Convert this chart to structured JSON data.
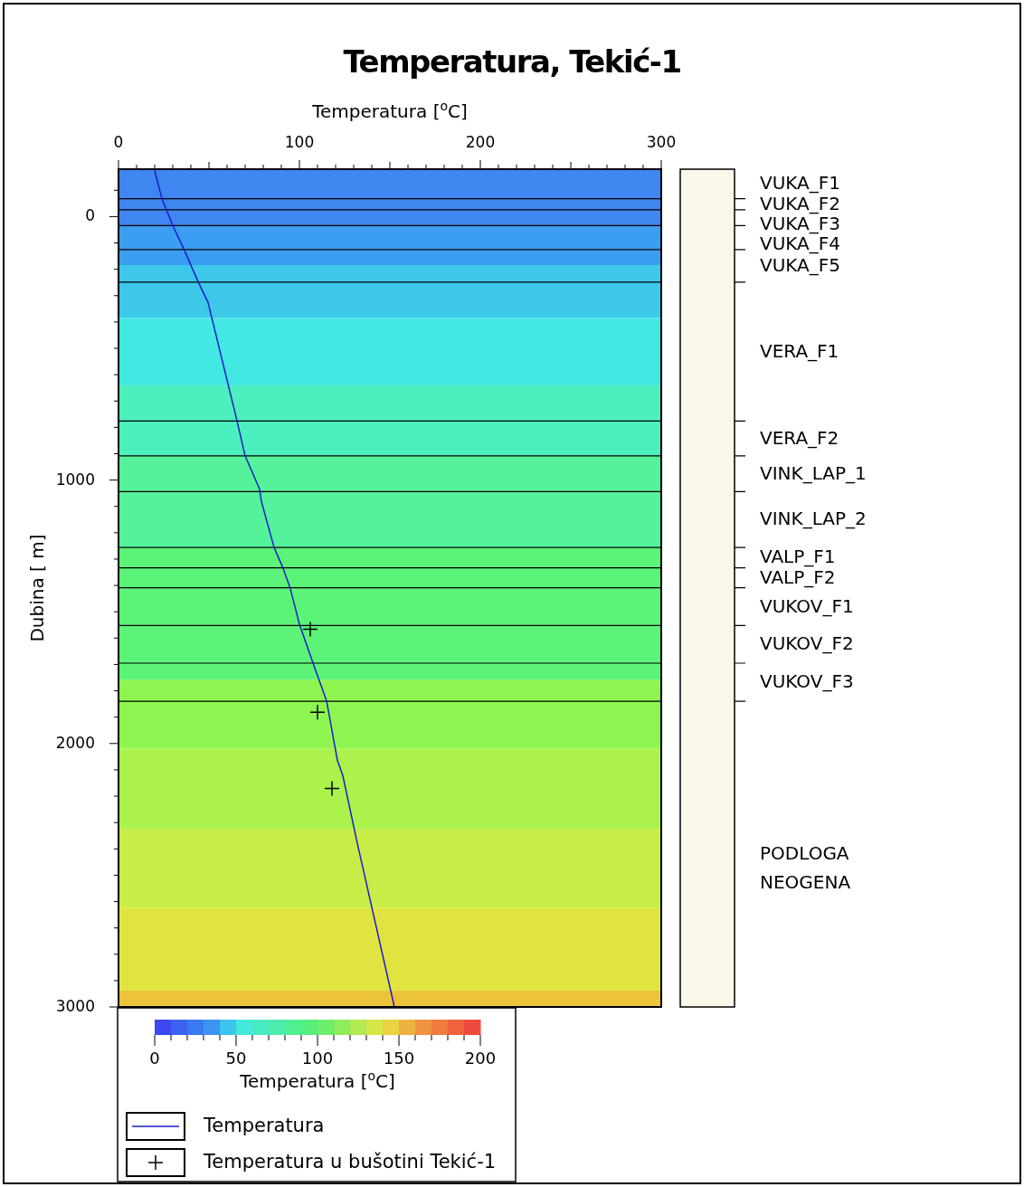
{
  "chart_data": {
    "type": "line",
    "title": "Temperatura, Tekić-1",
    "xlabel": "Temperatura [$^{o}$C]",
    "ylabel": "Dubina [ m]",
    "clabel": "Temperatura [$^{o}$C]",
    "xlim": [
      0,
      300
    ],
    "xticks": [
      0,
      {
        "value": 10,
        "label": null
      },
      {
        "value": 20,
        "label": null
      },
      {
        "value": 30,
        "label": null
      },
      {
        "value": 40,
        "label": null
      },
      {
        "value": 50,
        "label": null
      },
      {
        "value": 60,
        "label": null
      },
      {
        "value": 70,
        "label": null
      },
      {
        "value": 80,
        "label": null
      },
      {
        "value": 90,
        "label": null
      },
      100,
      {
        "value": 110,
        "label": null
      },
      {
        "value": 120,
        "label": null
      },
      {
        "value": 130,
        "label": null
      },
      {
        "value": 140,
        "label": null
      },
      {
        "value": 150,
        "label": null
      },
      {
        "value": 160,
        "label": null
      },
      {
        "value": 170,
        "label": null
      },
      {
        "value": 180,
        "label": null
      },
      {
        "value": 190,
        "label": null
      },
      200,
      {
        "value": 210,
        "label": null
      },
      {
        "value": 220,
        "label": null
      },
      {
        "value": 230,
        "label": null
      },
      {
        "value": 240,
        "label": null
      },
      {
        "value": 250,
        "label": null
      },
      {
        "value": 260,
        "label": null
      },
      {
        "value": 270,
        "label": null
      },
      {
        "value": 280,
        "label": null
      },
      {
        "value": 290,
        "label": null
      },
      300
    ],
    "ylim": [
      3000,
      -180
    ],
    "yticks": [
      {
        "value": -100,
        "label": null
      },
      0,
      {
        "value": 100,
        "label": null
      },
      {
        "value": 200,
        "label": null
      },
      {
        "value": 300,
        "label": null
      },
      {
        "value": 400,
        "label": null
      },
      {
        "value": 500,
        "label": null
      },
      {
        "value": 600,
        "label": null
      },
      {
        "value": 700,
        "label": null
      },
      {
        "value": 800,
        "label": null
      },
      {
        "value": 900,
        "label": null
      },
      1000,
      {
        "value": 1100,
        "label": null
      },
      {
        "value": 1200,
        "label": null
      },
      {
        "value": 1300,
        "label": null
      },
      {
        "value": 1400,
        "label": null
      },
      {
        "value": 1500,
        "label": null
      },
      {
        "value": 1600,
        "label": null
      },
      {
        "value": 1700,
        "label": null
      },
      {
        "value": 1800,
        "label": null
      },
      {
        "value": 1900,
        "label": null
      },
      2000,
      {
        "value": 2100,
        "label": null
      },
      {
        "value": 2200,
        "label": null
      },
      {
        "value": 2300,
        "label": null
      },
      {
        "value": 2400,
        "label": null
      },
      {
        "value": 2500,
        "label": null
      },
      {
        "value": 2600,
        "label": null
      },
      {
        "value": 2700,
        "label": null
      },
      {
        "value": 2800,
        "label": null
      },
      {
        "value": 2900,
        "label": null
      },
      3000
    ],
    "series": [
      {
        "name": "Temperatura",
        "color": "#1c1cc8",
        "x": [
          20,
          24,
          30,
          36,
          44,
          49.5,
          65.5,
          70,
          78,
          79,
          86,
          91,
          95,
          100,
          107.5,
          115,
          121,
          124,
          132,
          152.5
        ],
        "values": [
          -175,
          -68,
          34,
          121,
          247,
          326,
          775,
          908,
          1035,
          1082,
          1256,
          1335,
          1413,
          1547,
          1694,
          1838,
          2064,
          2122,
          2379,
          3000
        ]
      },
      {
        "name": "Temperatura u bušotini Tekić-1",
        "type": "scatter",
        "color": "#000000",
        "marker": "cross",
        "x": [
          106,
          110,
          118
        ],
        "values": [
          1566,
          1881,
          2171
        ]
      }
    ],
    "bands": [
      {
        "axis": "y",
        "from": -180,
        "to": 34,
        "color": "#3f86f0"
      },
      {
        "axis": "y",
        "from": 34,
        "to": 184,
        "color": "#3c9ef0"
      },
      {
        "axis": "y",
        "from": 184,
        "to": 385,
        "color": "#3dc8ea"
      },
      {
        "axis": "y",
        "from": 385,
        "to": 641,
        "color": "#42e8e2"
      },
      {
        "axis": "y",
        "from": 641,
        "to": 908,
        "color": "#4cefbe"
      },
      {
        "axis": "y",
        "from": 908,
        "to": 1256,
        "color": "#55f29c"
      },
      {
        "axis": "y",
        "from": 1256,
        "to": 1759,
        "color": "#5cf478"
      },
      {
        "axis": "y",
        "from": 1759,
        "to": 2019,
        "color": "#8ef550"
      },
      {
        "axis": "y",
        "from": 2019,
        "to": 2324,
        "color": "#aaf24c"
      },
      {
        "axis": "y",
        "from": 2324,
        "to": 2623,
        "color": "#c8ec48"
      },
      {
        "axis": "y",
        "from": 2623,
        "to": 2938,
        "color": "#e0e440"
      },
      {
        "axis": "y",
        "from": 2938,
        "to": 3000,
        "color": "#ecc43c"
      }
    ],
    "ref_lines": [
      {
        "axis": "y",
        "value": -68
      },
      {
        "axis": "y",
        "value": -26
      },
      {
        "axis": "y",
        "value": 34
      },
      {
        "axis": "y",
        "value": 125
      },
      {
        "axis": "y",
        "value": 249
      },
      {
        "axis": "y",
        "value": 776
      },
      {
        "axis": "y",
        "value": 908
      },
      {
        "axis": "y",
        "value": 1044
      },
      {
        "axis": "y",
        "value": 1256
      },
      {
        "axis": "y",
        "value": 1333
      },
      {
        "axis": "y",
        "value": 1409
      },
      {
        "axis": "y",
        "value": 1552
      },
      {
        "axis": "y",
        "value": 1695
      },
      {
        "axis": "y",
        "value": 1840
      }
    ],
    "annotations": [
      "VUKA_F1",
      "VUKA_F2",
      "VUKA_F3",
      "VUKA_F4",
      "VUKA_F5",
      "VERA_F1",
      "VERA_F2",
      "VINK_LAP_1",
      "VINK_LAP_2",
      "VALP_F1",
      "VALP_F2",
      "VUKOV_F1",
      "VUKOV_F2",
      "VUKOV_F3",
      "PODLOGA NEOGENA"
    ],
    "clim": [
      0,
      200
    ],
    "cticks": [
      0,
      {
        "value": 10,
        "label": null
      },
      {
        "value": 20,
        "label": null
      },
      {
        "value": 30,
        "label": null
      },
      {
        "value": 40,
        "label": null
      },
      50,
      {
        "value": 60,
        "label": null
      },
      {
        "value": 70,
        "label": null
      },
      {
        "value": 80,
        "label": null
      },
      {
        "value": 90,
        "label": null
      },
      100,
      {
        "value": 110,
        "label": null
      },
      {
        "value": 120,
        "label": null
      },
      {
        "value": 130,
        "label": null
      },
      {
        "value": 140,
        "label": null
      },
      150,
      {
        "value": 160,
        "label": null
      },
      {
        "value": 170,
        "label": null
      },
      {
        "value": 180,
        "label": null
      },
      {
        "value": 190,
        "label": null
      },
      200
    ],
    "legend": "bottom left"
  }
}
